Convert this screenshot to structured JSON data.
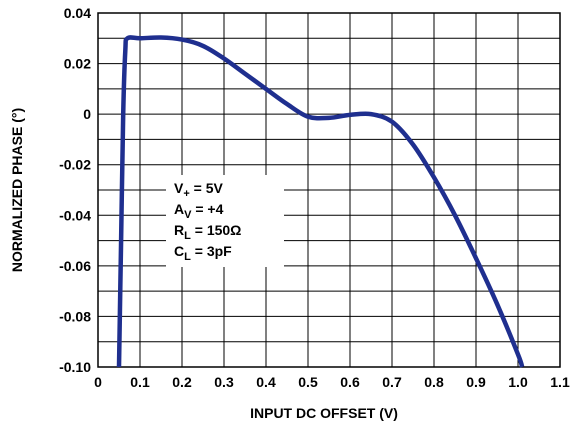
{
  "chart_data": {
    "type": "line",
    "title": "",
    "xlabel": "INPUT DC OFFSET (V)",
    "ylabel": "NORMALIZED PHASE (°)",
    "xlim": [
      0,
      1.1
    ],
    "ylim": [
      -0.1,
      0.04
    ],
    "x_ticks": [
      "0",
      "0.1",
      "0.2",
      "0.3",
      "0.4",
      "0.5",
      "0.6",
      "0.7",
      "0.8",
      "0.9",
      "1.0",
      "1.1"
    ],
    "y_ticks": [
      "0.04",
      "0.02",
      "0",
      "-0.02",
      "-0.04",
      "-0.06",
      "-0.08",
      "-0.10"
    ],
    "grid": true,
    "line_color": "#1f2f8f",
    "series": [
      {
        "x": [
          0.05,
          0.055,
          0.06,
          0.065,
          0.07,
          0.1,
          0.15,
          0.2,
          0.25,
          0.3,
          0.35,
          0.4,
          0.45,
          0.5,
          0.55,
          0.6,
          0.65,
          0.7,
          0.75,
          0.8,
          0.85,
          0.9,
          0.95,
          1.0,
          1.01
        ],
        "y": [
          -0.1,
          -0.05,
          0.0,
          0.025,
          0.03,
          0.03,
          0.0303,
          0.0295,
          0.027,
          0.022,
          0.016,
          0.01,
          0.004,
          -0.001,
          -0.0015,
          -0.0003,
          0.0,
          -0.003,
          -0.012,
          -0.025,
          -0.04,
          -0.057,
          -0.075,
          -0.095,
          -0.1
        ]
      }
    ],
    "annotation": {
      "lines": [
        {
          "main": "V",
          "sub": "+",
          "rest": " = 5V"
        },
        {
          "main": "A",
          "sub": "V",
          "rest": " = +4"
        },
        {
          "main": "R",
          "sub": "L",
          "rest": " = 150Ω"
        },
        {
          "main": "C",
          "sub": "L",
          "rest": " = 3pF"
        }
      ]
    }
  }
}
